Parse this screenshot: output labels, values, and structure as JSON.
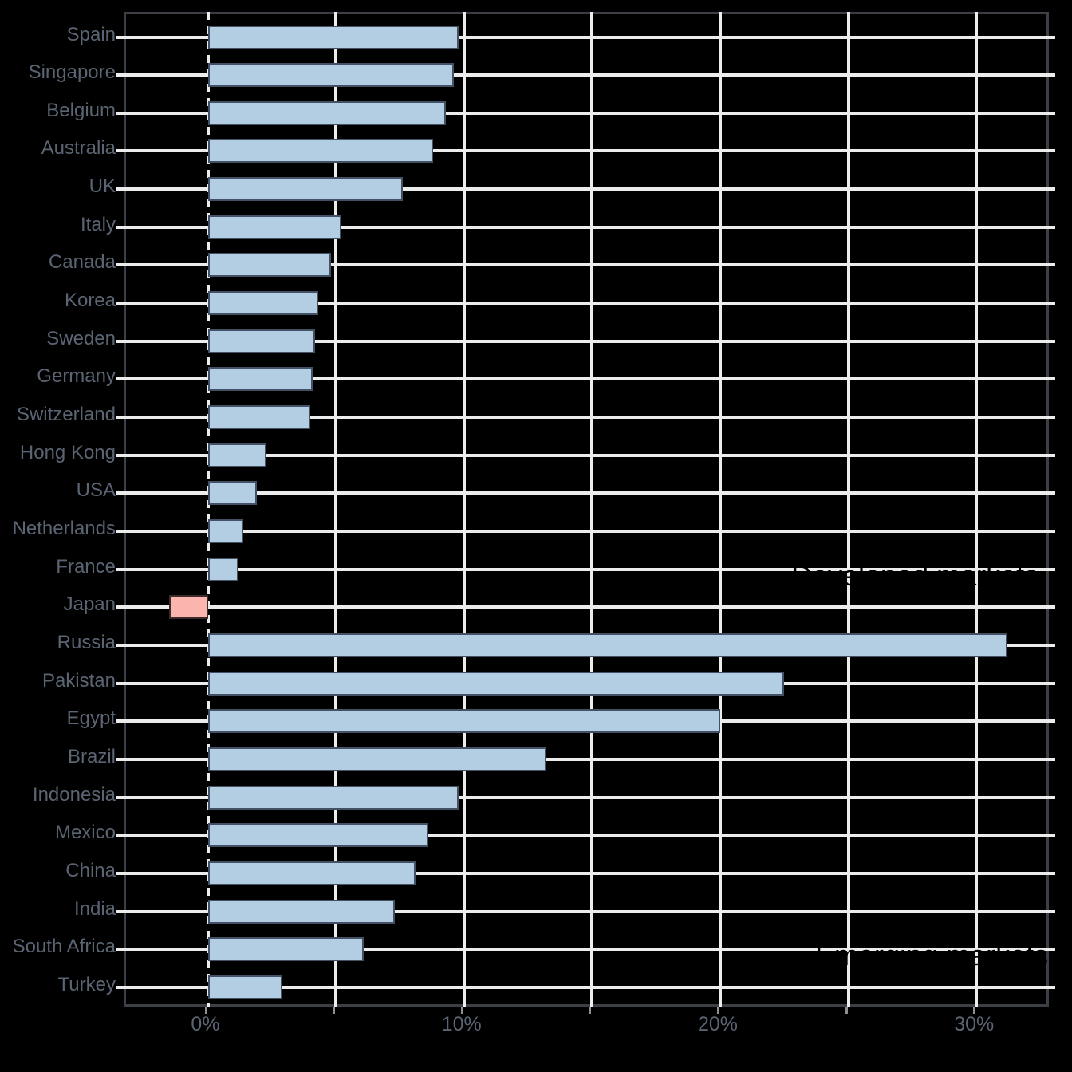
{
  "chart_data": {
    "type": "bar",
    "orientation": "horizontal",
    "title": "",
    "xlabel": "",
    "ylabel": "",
    "categories": [
      "Spain",
      "Singapore",
      "Belgium",
      "Australia",
      "UK",
      "Italy",
      "Canada",
      "Korea",
      "Sweden",
      "Germany",
      "Switzerland",
      "Hong Kong",
      "USA",
      "Netherlands",
      "France",
      "Japan",
      "Russia",
      "Pakistan",
      "Egypt",
      "Brazil",
      "Indonesia",
      "Mexico",
      "China",
      "India",
      "South Africa",
      "Turkey"
    ],
    "values": [
      9.8,
      9.6,
      9.3,
      8.8,
      7.6,
      5.2,
      4.8,
      4.3,
      4.2,
      4.1,
      4.0,
      2.3,
      1.9,
      1.4,
      1.2,
      -1.5,
      31.2,
      22.5,
      20.0,
      13.2,
      9.8,
      8.6,
      8.1,
      7.3,
      6.1,
      2.9
    ],
    "highlighted_categories": [
      "Japan"
    ],
    "groups": {
      "developed_markets": [
        "Spain",
        "Singapore",
        "Belgium",
        "Australia",
        "UK",
        "Italy",
        "Canada",
        "Korea",
        "Sweden",
        "Germany",
        "Switzerland",
        "Hong Kong",
        "USA",
        "Netherlands",
        "France",
        "Japan"
      ],
      "emerging_markets": [
        "Russia",
        "Pakistan",
        "Egypt",
        "Brazil",
        "Indonesia",
        "Mexico",
        "China",
        "India",
        "South Africa",
        "Turkey"
      ]
    },
    "x_tick_labels": [
      "0%",
      "10%",
      "20%",
      "30%"
    ],
    "x_tick_values": [
      0,
      10,
      20,
      30
    ],
    "x_gridline_values": [
      5,
      10,
      15,
      20,
      25,
      30
    ],
    "x_bottom_tick_values": [
      0,
      5,
      10,
      15,
      20,
      25,
      30
    ],
    "zero_line": "dashed",
    "xlim": [
      -3.2,
      32.9
    ],
    "grid": true,
    "legend": false,
    "annotations": {
      "developed": "Developed markets",
      "emerging": "Emerging markets"
    }
  },
  "colors": {
    "background": "#000000",
    "bar_fill": "#b3cde3",
    "bar_edge": "#425163",
    "highlight_fill": "#fbb4ae",
    "highlight_edge": "#3c2b2b",
    "gridline": "#ececec",
    "spine": "#3c4046",
    "tick_label": "#5a6472",
    "annotation_text": "#000000"
  }
}
